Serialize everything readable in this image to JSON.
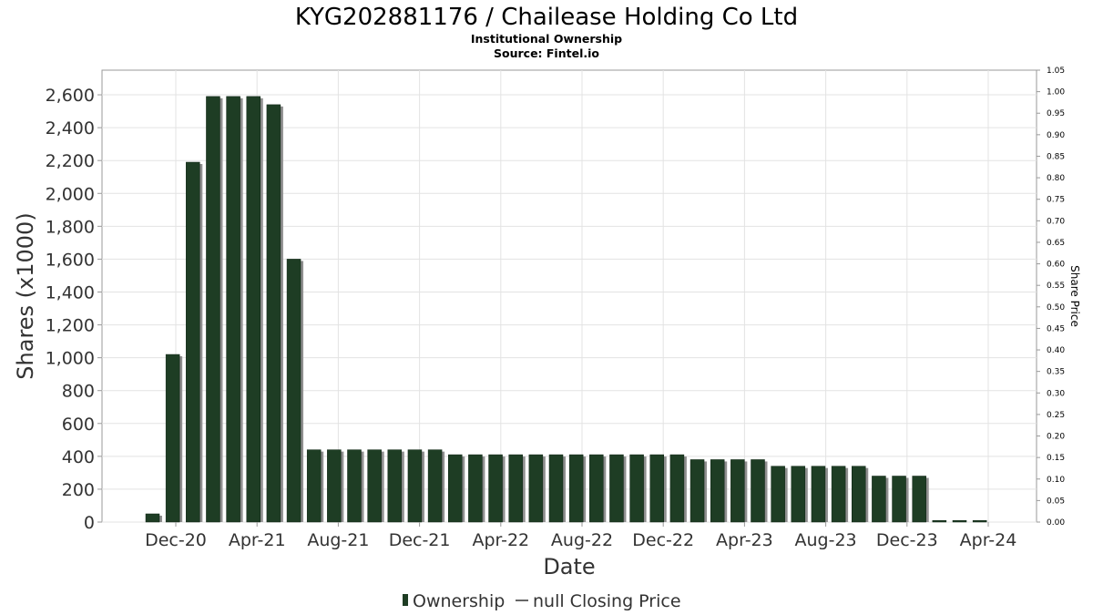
{
  "chart_data": {
    "type": "bar",
    "title": "KYG202881176 / Chailease Holding Co Ltd",
    "subtitle": "Institutional Ownership",
    "source": "Source: Fintel.io",
    "xlabel": "Date",
    "ylabel": "Shares (x1000)",
    "y2label": "Share Price",
    "ylim": [
      0,
      2750
    ],
    "y2lim": [
      0,
      1.05
    ],
    "yticks": [
      "0",
      "200",
      "400",
      "600",
      "800",
      "1,000",
      "1,200",
      "1,400",
      "1,600",
      "1,800",
      "2,000",
      "2,200",
      "2,400",
      "2,600"
    ],
    "y2ticks": [
      "0.00",
      "0.05",
      "0.10",
      "0.15",
      "0.20",
      "0.25",
      "0.30",
      "0.35",
      "0.40",
      "0.45",
      "0.50",
      "0.55",
      "0.60",
      "0.65",
      "0.70",
      "0.75",
      "0.80",
      "0.85",
      "0.90",
      "0.95",
      "1.00",
      "1.05"
    ],
    "xticks": [
      "Dec-20",
      "Apr-21",
      "Aug-21",
      "Dec-21",
      "Apr-22",
      "Aug-22",
      "Dec-22",
      "Apr-23",
      "Aug-23",
      "Dec-23",
      "Apr-24"
    ],
    "grid": true,
    "legend_position": "bottom",
    "series": [
      {
        "name": "Ownership",
        "color": "#1e3d24",
        "values": [
          50,
          1020,
          2190,
          2590,
          2590,
          2590,
          2540,
          1600,
          440,
          440,
          440,
          440,
          440,
          440,
          440,
          410,
          410,
          410,
          410,
          410,
          410,
          410,
          410,
          410,
          410,
          410,
          410,
          380,
          380,
          380,
          380,
          340,
          340,
          340,
          340,
          340,
          280,
          280,
          280,
          10,
          10,
          10
        ]
      }
    ],
    "legend": [
      {
        "name": "Ownership",
        "marker": "bar"
      },
      {
        "name": "null Closing Price",
        "marker": "line"
      }
    ]
  }
}
